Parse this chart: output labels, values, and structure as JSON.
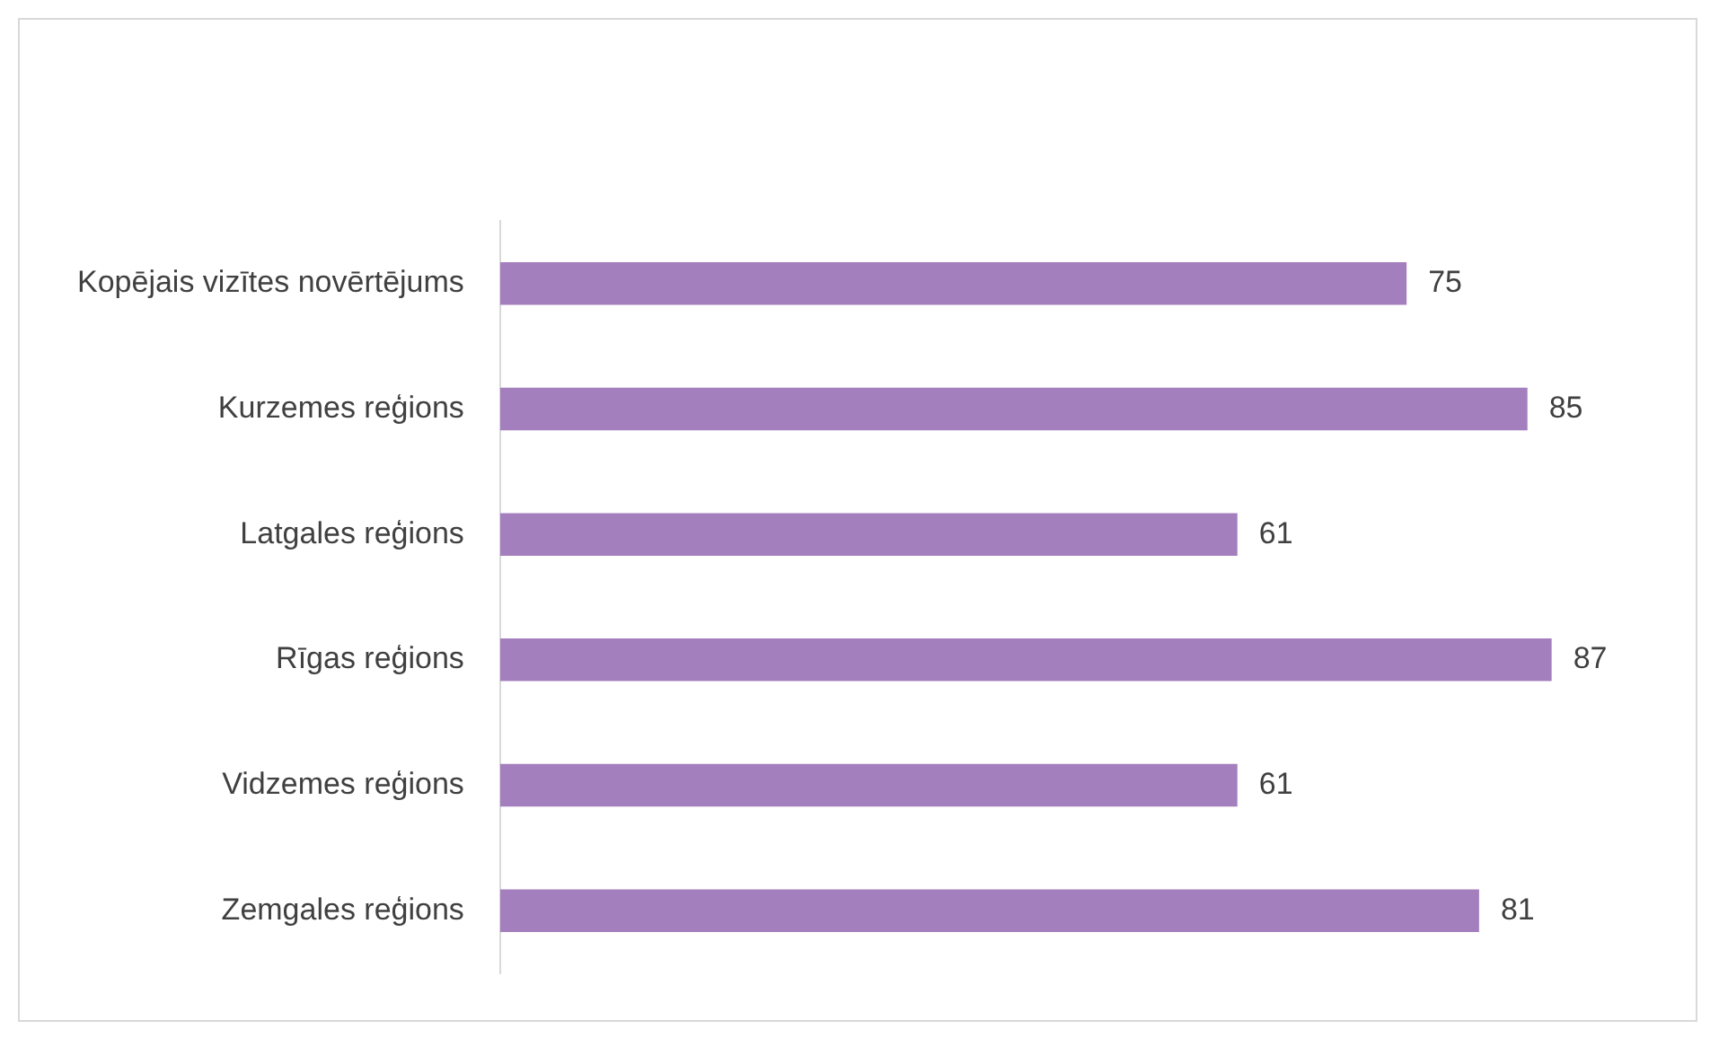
{
  "chart_data": {
    "type": "bar",
    "orientation": "horizontal",
    "categories": [
      "Kopējais vizītes novērtējums",
      "Kurzemes reģions",
      "Latgales reģions",
      "Rīgas reģions",
      "Vidzemes reģions",
      "Zemgales reģions"
    ],
    "values": [
      75,
      85,
      61,
      87,
      61,
      81
    ],
    "color": "#a47fbd",
    "data_labels": true,
    "legend": false,
    "tick_labels": "y"
  }
}
